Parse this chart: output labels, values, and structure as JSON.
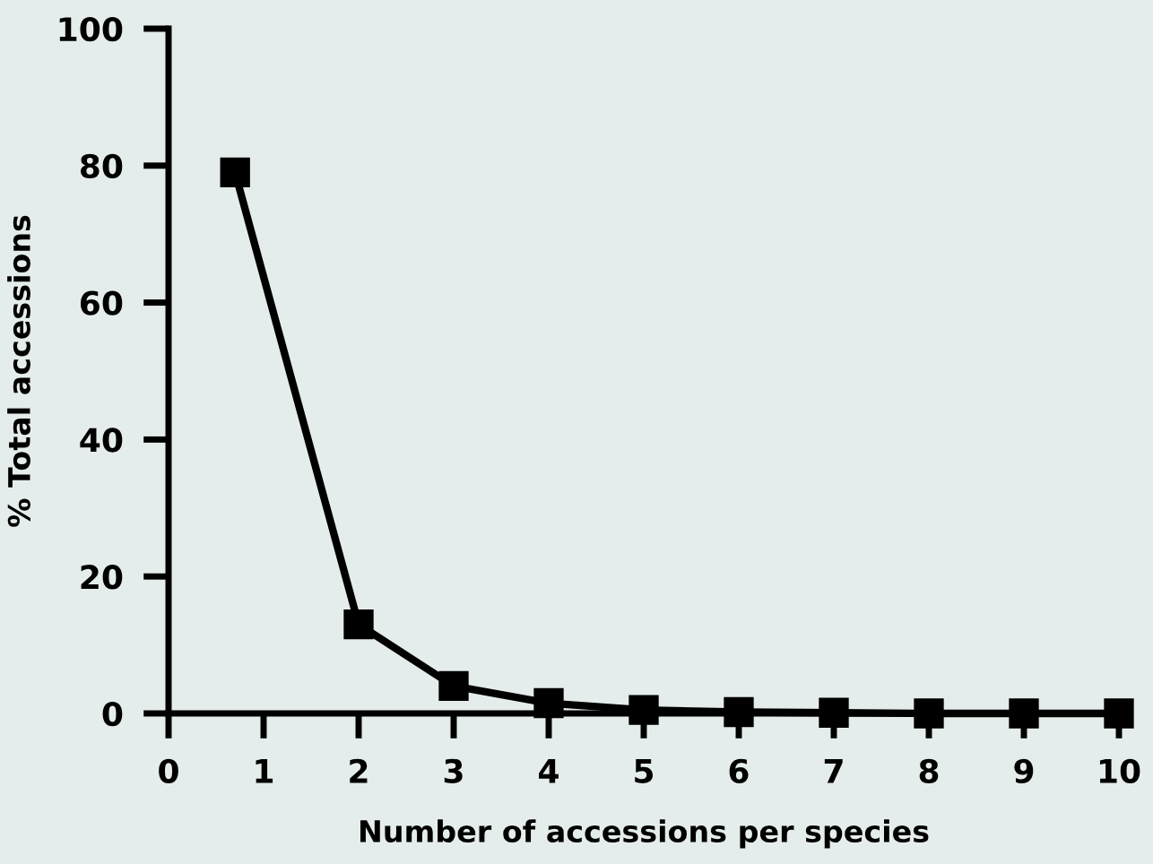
{
  "chart_data": {
    "type": "line",
    "xlabel": "Number of accessions per species",
    "ylabel": "% Total accessions",
    "series": [
      {
        "color": "#000000",
        "x": [
          0.7,
          2,
          3,
          4,
          5,
          6,
          7,
          8,
          9,
          10
        ],
        "values": [
          79,
          13,
          4,
          1.5,
          0.5,
          0.2,
          0.1,
          0,
          0,
          0
        ]
      }
    ],
    "xlim": [
      0,
      10
    ],
    "ylim": [
      0,
      100
    ],
    "xticks": [
      0,
      1,
      2,
      3,
      4,
      5,
      6,
      7,
      8,
      9,
      10
    ],
    "yticks": [
      0,
      20,
      40,
      60,
      80,
      100
    ],
    "marker": "square",
    "line_style": "solid",
    "grid": false,
    "legend": false
  }
}
